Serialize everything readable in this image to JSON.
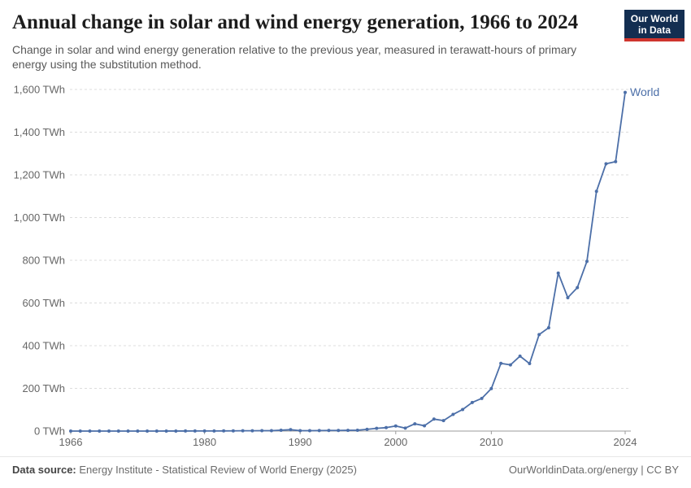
{
  "header": {
    "title": "Annual change in solar and wind energy generation, 1966 to 2024",
    "subtitle": "Change in solar and wind energy generation relative to the previous year, measured in terawatt-hours of primary energy using the substitution method."
  },
  "logo": {
    "line1": "Our World",
    "line2": "in Data",
    "bg_color": "#132E51",
    "accent_color": "#CF352E"
  },
  "footer": {
    "source_label": "Data source:",
    "source_text": "Energy Institute - Statistical Review of World Energy (2025)",
    "link_text": "OurWorldinData.org/energy",
    "separator": "|",
    "license_text": "CC BY"
  },
  "chart_data": {
    "type": "line",
    "title": "Annual change in solar and wind energy generation, 1966 to 2024",
    "xlabel": "",
    "ylabel": "TWh",
    "xlim": [
      1966,
      2024
    ],
    "ylim": [
      0,
      1600
    ],
    "grid": "horizontal-dashed",
    "legend_position": "end-of-line",
    "x_ticks": [
      1966,
      1980,
      1990,
      2000,
      2010,
      2024
    ],
    "y_ticks": [
      {
        "value": 0,
        "label": "0 TWh"
      },
      {
        "value": 200,
        "label": "200 TWh"
      },
      {
        "value": 400,
        "label": "400 TWh"
      },
      {
        "value": 600,
        "label": "600 TWh"
      },
      {
        "value": 800,
        "label": "800 TWh"
      },
      {
        "value": 1000,
        "label": "1,000 TWh"
      },
      {
        "value": 1200,
        "label": "1,200 TWh"
      },
      {
        "value": 1400,
        "label": "1,400 TWh"
      },
      {
        "value": 1600,
        "label": "1,600 TWh"
      }
    ],
    "series": [
      {
        "name": "World",
        "color": "#4C6FA8",
        "years": [
          1966,
          1967,
          1968,
          1969,
          1970,
          1971,
          1972,
          1973,
          1974,
          1975,
          1976,
          1977,
          1978,
          1979,
          1980,
          1981,
          1982,
          1983,
          1984,
          1985,
          1986,
          1987,
          1988,
          1989,
          1990,
          1991,
          1992,
          1993,
          1994,
          1995,
          1996,
          1997,
          1998,
          1999,
          2000,
          2001,
          2002,
          2003,
          2004,
          2005,
          2006,
          2007,
          2008,
          2009,
          2010,
          2011,
          2012,
          2013,
          2014,
          2015,
          2016,
          2017,
          2018,
          2019,
          2020,
          2021,
          2022,
          2023,
          2024
        ],
        "values": [
          0,
          0,
          0,
          0,
          0,
          0,
          0,
          0.1,
          0.1,
          0.1,
          0.2,
          0.2,
          0.3,
          0.4,
          0.5,
          0.6,
          0.8,
          1,
          1.5,
          1.5,
          2,
          2,
          4,
          6.5,
          2,
          2,
          2.5,
          3,
          3,
          3.5,
          4,
          8,
          13,
          16,
          24,
          14,
          34,
          25,
          56,
          49,
          78,
          101,
          134,
          153,
          199,
          317,
          310,
          351,
          316,
          452,
          484,
          740,
          625,
          672,
          795,
          1123,
          1252,
          1262,
          1586
        ]
      }
    ]
  }
}
